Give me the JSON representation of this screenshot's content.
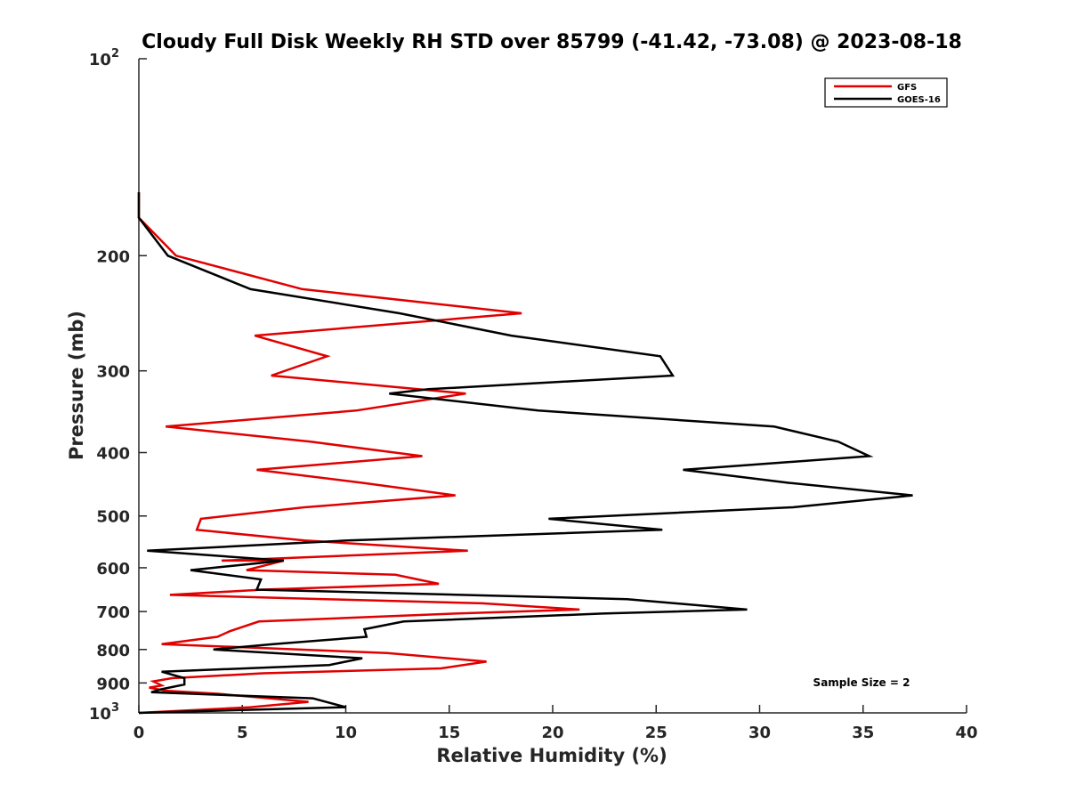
{
  "chart_data": {
    "type": "line",
    "title": "Cloudy Full Disk Weekly RH STD over 85799 (-41.42, -73.08) @ 2023-08-18",
    "xlabel": "Relative Humidity (%)",
    "ylabel": "Pressure (mb)",
    "xlim": [
      0,
      40
    ],
    "ylim": [
      100,
      1000
    ],
    "y_scale": "log",
    "y_reversed": true,
    "x_ticks": [
      "0",
      "5",
      "10",
      "15",
      "20",
      "25",
      "30",
      "35",
      "40"
    ],
    "y_ticks": [
      {
        "value": 100,
        "label": "10",
        "exp": "2"
      },
      {
        "value": 200,
        "label": "200"
      },
      {
        "value": 300,
        "label": "300"
      },
      {
        "value": 400,
        "label": "400"
      },
      {
        "value": 500,
        "label": "500"
      },
      {
        "value": 600,
        "label": "600"
      },
      {
        "value": 700,
        "label": "700"
      },
      {
        "value": 800,
        "label": "800"
      },
      {
        "value": 900,
        "label": "900"
      },
      {
        "value": 1000,
        "label": "10",
        "exp": "3"
      }
    ],
    "grid": false,
    "legend_position": "top-right",
    "annotation": "Sample Size = 2",
    "series": [
      {
        "name": "GFS",
        "color": "#e00000",
        "points": [
          [
            0,
            160
          ],
          [
            0,
            175
          ],
          [
            1.8,
            200
          ],
          [
            7.9,
            225
          ],
          [
            18.5,
            245
          ],
          [
            5.6,
            265
          ],
          [
            9.1,
            285
          ],
          [
            6.4,
            305
          ],
          [
            15.8,
            325
          ],
          [
            10.5,
            345
          ],
          [
            1.3,
            365
          ],
          [
            8.3,
            385
          ],
          [
            13.7,
            405
          ],
          [
            5.7,
            425
          ],
          [
            10.8,
            445
          ],
          [
            15.3,
            465
          ],
          [
            8.0,
            485
          ],
          [
            3.0,
            505
          ],
          [
            2.8,
            525
          ],
          [
            8.0,
            545
          ],
          [
            15.9,
            565
          ],
          [
            4.0,
            585
          ],
          [
            7.0,
            585
          ],
          [
            5.2,
            605
          ],
          [
            12.4,
            615
          ],
          [
            14.5,
            635
          ],
          [
            6.0,
            648
          ],
          [
            1.5,
            660
          ],
          [
            9.0,
            670
          ],
          [
            16.6,
            680
          ],
          [
            21.3,
            695
          ],
          [
            15.3,
            705
          ],
          [
            5.8,
            725
          ],
          [
            4.4,
            750
          ],
          [
            3.8,
            765
          ],
          [
            1.1,
            785
          ],
          [
            12.0,
            810
          ],
          [
            16.8,
            835
          ],
          [
            14.6,
            855
          ],
          [
            6.0,
            870
          ],
          [
            1.6,
            885
          ],
          [
            0.7,
            895
          ],
          [
            1.1,
            908
          ],
          [
            0.5,
            915
          ],
          [
            1.3,
            925
          ],
          [
            3.8,
            935
          ],
          [
            6.3,
            950
          ],
          [
            8.2,
            962
          ],
          [
            5.4,
            980
          ],
          [
            0,
            1000
          ]
        ]
      },
      {
        "name": "GOES-16",
        "color": "#000000",
        "points": [
          [
            0,
            160
          ],
          [
            0,
            175
          ],
          [
            1.4,
            200
          ],
          [
            5.4,
            225
          ],
          [
            12.6,
            245
          ],
          [
            18.0,
            265
          ],
          [
            25.2,
            285
          ],
          [
            25.8,
            305
          ],
          [
            14.0,
            320
          ],
          [
            12.1,
            325
          ],
          [
            19.3,
            345
          ],
          [
            30.7,
            365
          ],
          [
            33.8,
            385
          ],
          [
            35.3,
            405
          ],
          [
            26.3,
            425
          ],
          [
            31.4,
            445
          ],
          [
            37.4,
            465
          ],
          [
            31.6,
            485
          ],
          [
            19.8,
            505
          ],
          [
            25.3,
            525
          ],
          [
            10.1,
            545
          ],
          [
            0.4,
            565
          ],
          [
            7.0,
            585
          ],
          [
            2.5,
            605
          ],
          [
            5.9,
            625
          ],
          [
            5.7,
            648
          ],
          [
            23.6,
            670
          ],
          [
            29.4,
            695
          ],
          [
            22.4,
            705
          ],
          [
            12.8,
            725
          ],
          [
            10.9,
            745
          ],
          [
            11.0,
            765
          ],
          [
            6.5,
            785
          ],
          [
            3.6,
            800
          ],
          [
            10.8,
            825
          ],
          [
            9.2,
            845
          ],
          [
            1.1,
            865
          ],
          [
            2.2,
            885
          ],
          [
            2.2,
            905
          ],
          [
            1.1,
            920
          ],
          [
            0.6,
            930
          ],
          [
            8.4,
            950
          ],
          [
            10.0,
            980
          ],
          [
            0,
            1000
          ]
        ]
      }
    ]
  }
}
